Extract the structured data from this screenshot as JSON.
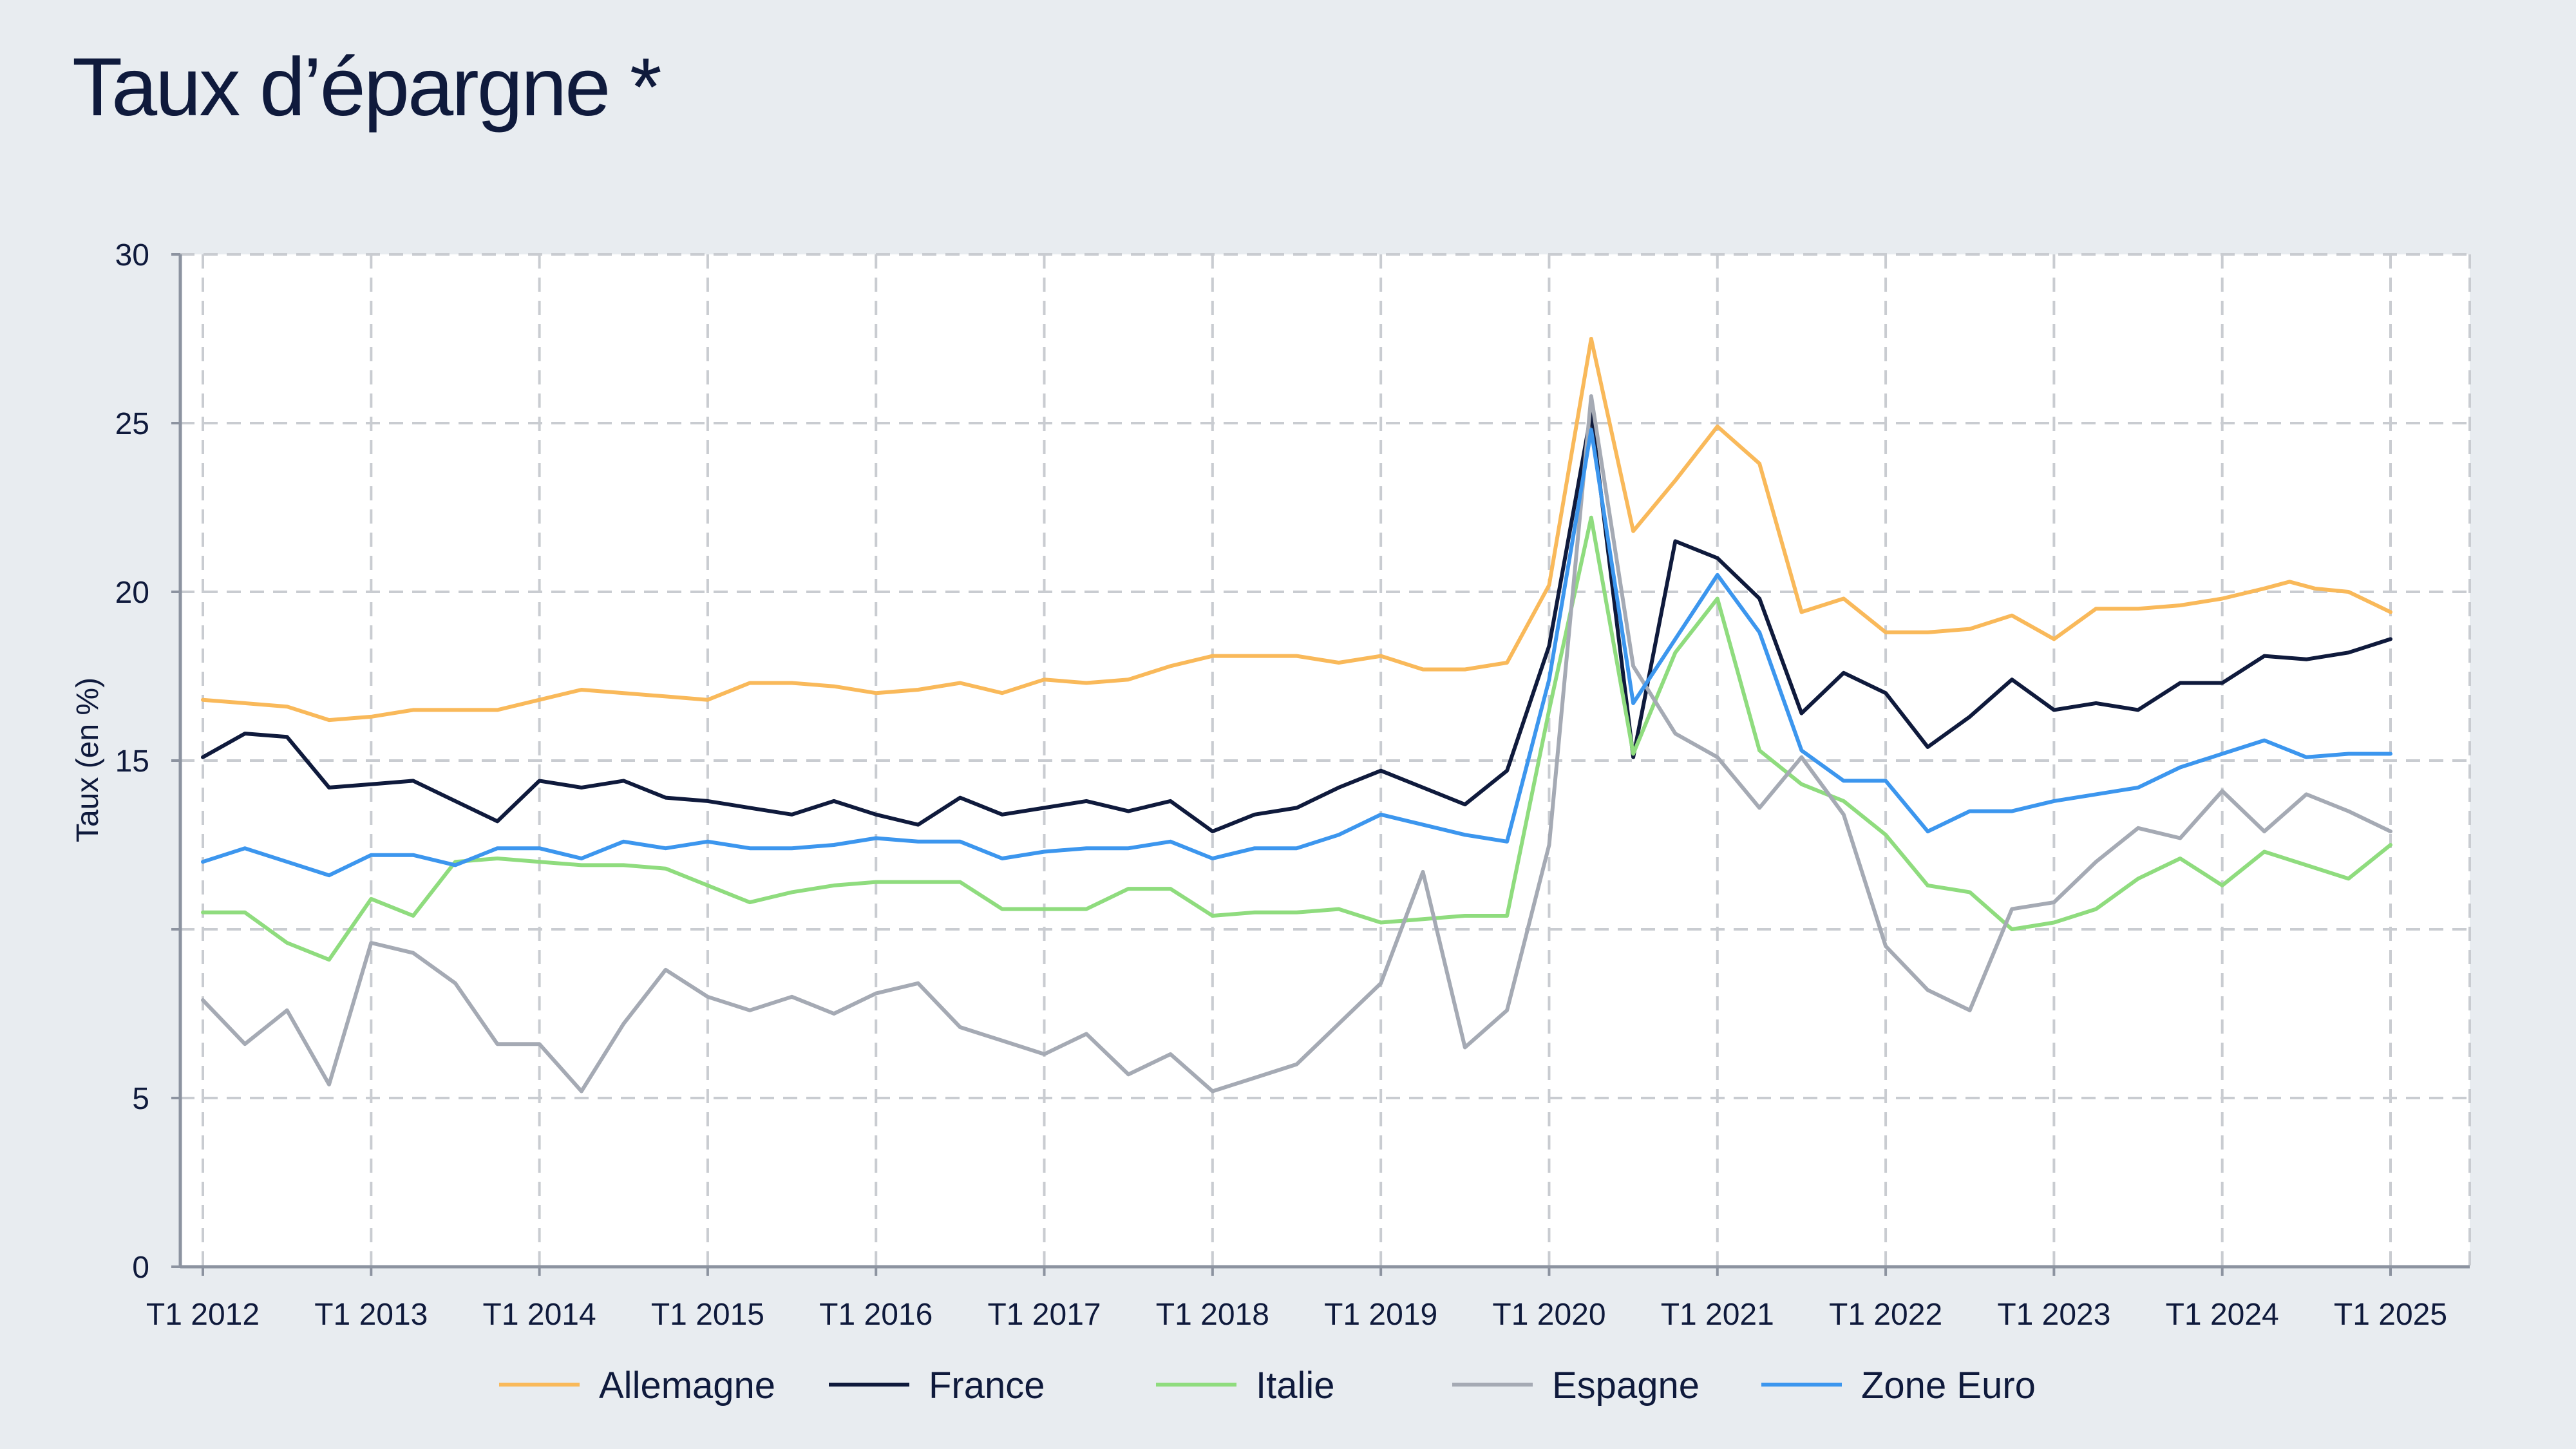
{
  "title": "Taux d’épargne *",
  "colors": {
    "background": "#e8ecf0",
    "plot_background": "#ffffff",
    "grid": "#c9ccd1",
    "axis": "#8c93a0",
    "text": "#0f1a3c"
  },
  "chart_data": {
    "type": "line",
    "title": "Taux d’épargne *",
    "xlabel": "",
    "ylabel": "Taux (en %)",
    "y_ticks": [
      0,
      5,
      10,
      15,
      20,
      25,
      30
    ],
    "y_tick_labels": [
      "0",
      "5",
      "",
      "15",
      "20",
      "25",
      "30"
    ],
    "x_tick_labels": [
      "T1 2012",
      "T1 2013",
      "T1 2014",
      "T1 2015",
      "T1 2016",
      "T1 2017",
      "T1 2018",
      "T1 2019",
      "T1 2020",
      "T1 2021",
      "T1 2022",
      "T1 2023",
      "T1 2024",
      "T1 2025"
    ],
    "x_range": [
      2012,
      2025
    ],
    "ylim": [
      0,
      30
    ],
    "grid": true,
    "legend_position": "bottom",
    "series": [
      {
        "name": "Allemagne",
        "color": "#f9b95a",
        "points": [
          [
            2012.0,
            16.8
          ],
          [
            2012.25,
            16.7
          ],
          [
            2012.5,
            16.6
          ],
          [
            2012.75,
            16.2
          ],
          [
            2013.0,
            16.3
          ],
          [
            2013.25,
            16.5
          ],
          [
            2013.5,
            16.5
          ],
          [
            2013.75,
            16.5
          ],
          [
            2014.0,
            16.8
          ],
          [
            2014.25,
            17.1
          ],
          [
            2014.5,
            17.0
          ],
          [
            2014.75,
            16.9
          ],
          [
            2015.0,
            16.8
          ],
          [
            2015.25,
            17.3
          ],
          [
            2015.5,
            17.3
          ],
          [
            2015.75,
            17.2
          ],
          [
            2016.0,
            17.0
          ],
          [
            2016.25,
            17.1
          ],
          [
            2016.5,
            17.3
          ],
          [
            2016.75,
            17.0
          ],
          [
            2017.0,
            17.4
          ],
          [
            2017.25,
            17.3
          ],
          [
            2017.5,
            17.4
          ],
          [
            2017.75,
            17.8
          ],
          [
            2018.0,
            18.1
          ],
          [
            2018.25,
            18.1
          ],
          [
            2018.5,
            18.1
          ],
          [
            2018.75,
            17.9
          ],
          [
            2019.0,
            18.1
          ],
          [
            2019.25,
            17.7
          ],
          [
            2019.5,
            17.7
          ],
          [
            2019.75,
            17.9
          ],
          [
            2020.0,
            20.2
          ],
          [
            2020.25,
            27.5
          ],
          [
            2020.5,
            21.8
          ],
          [
            2020.75,
            23.3
          ],
          [
            2021.0,
            24.9
          ],
          [
            2021.25,
            23.8
          ],
          [
            2021.5,
            19.4
          ],
          [
            2021.75,
            19.8
          ],
          [
            2022.0,
            18.8
          ],
          [
            2022.25,
            18.8
          ],
          [
            2022.5,
            18.9
          ],
          [
            2022.75,
            19.3
          ],
          [
            2023.0,
            18.6
          ],
          [
            2023.25,
            19.5
          ],
          [
            2023.5,
            19.5
          ],
          [
            2023.75,
            19.6
          ],
          [
            2024.0,
            19.8
          ],
          [
            2024.25,
            20.1
          ],
          [
            2024.4,
            20.3
          ],
          [
            2024.55,
            20.1
          ],
          [
            2024.75,
            20.0
          ],
          [
            2025.0,
            19.4
          ]
        ]
      },
      {
        "name": "France",
        "color": "#0f1a3c",
        "points": [
          [
            2012.0,
            15.1
          ],
          [
            2012.25,
            15.8
          ],
          [
            2012.5,
            15.7
          ],
          [
            2012.75,
            14.2
          ],
          [
            2013.0,
            14.3
          ],
          [
            2013.25,
            14.4
          ],
          [
            2013.5,
            13.8
          ],
          [
            2013.75,
            13.2
          ],
          [
            2014.0,
            14.4
          ],
          [
            2014.25,
            14.2
          ],
          [
            2014.5,
            14.4
          ],
          [
            2014.75,
            13.9
          ],
          [
            2015.0,
            13.8
          ],
          [
            2015.25,
            13.6
          ],
          [
            2015.5,
            13.4
          ],
          [
            2015.75,
            13.8
          ],
          [
            2016.0,
            13.4
          ],
          [
            2016.25,
            13.1
          ],
          [
            2016.5,
            13.9
          ],
          [
            2016.75,
            13.4
          ],
          [
            2017.0,
            13.6
          ],
          [
            2017.25,
            13.8
          ],
          [
            2017.5,
            13.5
          ],
          [
            2017.75,
            13.8
          ],
          [
            2018.0,
            12.9
          ],
          [
            2018.25,
            13.4
          ],
          [
            2018.5,
            13.6
          ],
          [
            2018.75,
            14.2
          ],
          [
            2019.0,
            14.7
          ],
          [
            2019.25,
            14.2
          ],
          [
            2019.5,
            13.7
          ],
          [
            2019.75,
            14.7
          ],
          [
            2020.0,
            18.4
          ],
          [
            2020.25,
            25.3
          ],
          [
            2020.5,
            15.1
          ],
          [
            2020.75,
            21.5
          ],
          [
            2021.0,
            21.0
          ],
          [
            2021.25,
            19.8
          ],
          [
            2021.5,
            16.4
          ],
          [
            2021.75,
            17.6
          ],
          [
            2022.0,
            17.0
          ],
          [
            2022.25,
            15.4
          ],
          [
            2022.5,
            16.3
          ],
          [
            2022.75,
            17.4
          ],
          [
            2023.0,
            16.5
          ],
          [
            2023.25,
            16.7
          ],
          [
            2023.5,
            16.5
          ],
          [
            2023.75,
            17.3
          ],
          [
            2024.0,
            17.3
          ],
          [
            2024.25,
            18.1
          ],
          [
            2024.5,
            18.0
          ],
          [
            2024.75,
            18.2
          ],
          [
            2025.0,
            18.6
          ]
        ]
      },
      {
        "name": "Italie",
        "color": "#8fdc7e",
        "points": [
          [
            2012.0,
            10.5
          ],
          [
            2012.25,
            10.5
          ],
          [
            2012.5,
            9.6
          ],
          [
            2012.75,
            9.1
          ],
          [
            2013.0,
            10.9
          ],
          [
            2013.25,
            10.4
          ],
          [
            2013.5,
            12.0
          ],
          [
            2013.75,
            12.1
          ],
          [
            2014.0,
            12.0
          ],
          [
            2014.25,
            11.9
          ],
          [
            2014.5,
            11.9
          ],
          [
            2014.75,
            11.8
          ],
          [
            2015.0,
            11.3
          ],
          [
            2015.25,
            10.8
          ],
          [
            2015.5,
            11.1
          ],
          [
            2015.75,
            11.3
          ],
          [
            2016.0,
            11.4
          ],
          [
            2016.25,
            11.4
          ],
          [
            2016.5,
            11.4
          ],
          [
            2016.75,
            10.6
          ],
          [
            2017.0,
            10.6
          ],
          [
            2017.25,
            10.6
          ],
          [
            2017.5,
            11.2
          ],
          [
            2017.75,
            11.2
          ],
          [
            2018.0,
            10.4
          ],
          [
            2018.25,
            10.5
          ],
          [
            2018.5,
            10.5
          ],
          [
            2018.75,
            10.6
          ],
          [
            2019.0,
            10.2
          ],
          [
            2019.25,
            10.3
          ],
          [
            2019.5,
            10.4
          ],
          [
            2019.75,
            10.4
          ],
          [
            2020.0,
            16.5
          ],
          [
            2020.25,
            22.2
          ],
          [
            2020.5,
            15.2
          ],
          [
            2020.75,
            18.2
          ],
          [
            2021.0,
            19.8
          ],
          [
            2021.25,
            15.3
          ],
          [
            2021.5,
            14.3
          ],
          [
            2021.75,
            13.8
          ],
          [
            2022.0,
            12.8
          ],
          [
            2022.25,
            11.3
          ],
          [
            2022.5,
            11.1
          ],
          [
            2022.75,
            10.0
          ],
          [
            2023.0,
            10.2
          ],
          [
            2023.25,
            10.6
          ],
          [
            2023.5,
            11.5
          ],
          [
            2023.75,
            12.1
          ],
          [
            2024.0,
            11.3
          ],
          [
            2024.25,
            12.3
          ],
          [
            2024.5,
            11.9
          ],
          [
            2024.75,
            11.5
          ],
          [
            2025.0,
            12.5
          ]
        ]
      },
      {
        "name": "Espagne",
        "color": "#a5aab4",
        "points": [
          [
            2012.0,
            7.9
          ],
          [
            2012.25,
            6.6
          ],
          [
            2012.5,
            7.6
          ],
          [
            2012.75,
            5.4
          ],
          [
            2013.0,
            9.6
          ],
          [
            2013.25,
            9.3
          ],
          [
            2013.5,
            8.4
          ],
          [
            2013.75,
            6.6
          ],
          [
            2014.0,
            6.6
          ],
          [
            2014.25,
            5.2
          ],
          [
            2014.5,
            7.2
          ],
          [
            2014.75,
            8.8
          ],
          [
            2015.0,
            8.0
          ],
          [
            2015.25,
            7.6
          ],
          [
            2015.5,
            8.0
          ],
          [
            2015.75,
            7.5
          ],
          [
            2016.0,
            8.1
          ],
          [
            2016.25,
            8.4
          ],
          [
            2016.5,
            7.1
          ],
          [
            2016.75,
            6.7
          ],
          [
            2017.0,
            6.3
          ],
          [
            2017.25,
            6.9
          ],
          [
            2017.5,
            5.7
          ],
          [
            2017.75,
            6.3
          ],
          [
            2018.0,
            5.2
          ],
          [
            2018.25,
            5.6
          ],
          [
            2018.5,
            6.0
          ],
          [
            2018.75,
            7.2
          ],
          [
            2019.0,
            8.4
          ],
          [
            2019.25,
            11.7
          ],
          [
            2019.5,
            6.5
          ],
          [
            2019.75,
            7.6
          ],
          [
            2020.0,
            12.5
          ],
          [
            2020.25,
            25.8
          ],
          [
            2020.5,
            17.8
          ],
          [
            2020.75,
            15.8
          ],
          [
            2021.0,
            15.1
          ],
          [
            2021.25,
            13.6
          ],
          [
            2021.5,
            15.1
          ],
          [
            2021.75,
            13.4
          ],
          [
            2022.0,
            9.5
          ],
          [
            2022.25,
            8.2
          ],
          [
            2022.5,
            7.6
          ],
          [
            2022.75,
            10.6
          ],
          [
            2023.0,
            10.8
          ],
          [
            2023.25,
            12.0
          ],
          [
            2023.5,
            13.0
          ],
          [
            2023.75,
            12.7
          ],
          [
            2024.0,
            14.1
          ],
          [
            2024.25,
            12.9
          ],
          [
            2024.5,
            14.0
          ],
          [
            2024.75,
            13.5
          ],
          [
            2025.0,
            12.9
          ]
        ]
      },
      {
        "name": "Zone Euro",
        "color": "#3c96ee",
        "points": [
          [
            2012.0,
            12.0
          ],
          [
            2012.25,
            12.4
          ],
          [
            2012.5,
            12.0
          ],
          [
            2012.75,
            11.6
          ],
          [
            2013.0,
            12.2
          ],
          [
            2013.25,
            12.2
          ],
          [
            2013.5,
            11.9
          ],
          [
            2013.75,
            12.4
          ],
          [
            2014.0,
            12.4
          ],
          [
            2014.25,
            12.1
          ],
          [
            2014.5,
            12.6
          ],
          [
            2014.75,
            12.4
          ],
          [
            2015.0,
            12.6
          ],
          [
            2015.25,
            12.4
          ],
          [
            2015.5,
            12.4
          ],
          [
            2015.75,
            12.5
          ],
          [
            2016.0,
            12.7
          ],
          [
            2016.25,
            12.6
          ],
          [
            2016.5,
            12.6
          ],
          [
            2016.75,
            12.1
          ],
          [
            2017.0,
            12.3
          ],
          [
            2017.25,
            12.4
          ],
          [
            2017.5,
            12.4
          ],
          [
            2017.75,
            12.6
          ],
          [
            2018.0,
            12.1
          ],
          [
            2018.25,
            12.4
          ],
          [
            2018.5,
            12.4
          ],
          [
            2018.75,
            12.8
          ],
          [
            2019.0,
            13.4
          ],
          [
            2019.25,
            13.1
          ],
          [
            2019.5,
            12.8
          ],
          [
            2019.75,
            12.6
          ],
          [
            2020.0,
            17.4
          ],
          [
            2020.25,
            24.8
          ],
          [
            2020.5,
            16.7
          ],
          [
            2020.75,
            18.6
          ],
          [
            2021.0,
            20.5
          ],
          [
            2021.25,
            18.8
          ],
          [
            2021.5,
            15.3
          ],
          [
            2021.75,
            14.4
          ],
          [
            2022.0,
            14.4
          ],
          [
            2022.25,
            12.9
          ],
          [
            2022.5,
            13.5
          ],
          [
            2022.75,
            13.5
          ],
          [
            2023.0,
            13.8
          ],
          [
            2023.25,
            14.0
          ],
          [
            2023.5,
            14.2
          ],
          [
            2023.75,
            14.8
          ],
          [
            2024.0,
            15.2
          ],
          [
            2024.25,
            15.6
          ],
          [
            2024.5,
            15.1
          ],
          [
            2024.75,
            15.2
          ],
          [
            2025.0,
            15.2
          ]
        ]
      }
    ]
  }
}
